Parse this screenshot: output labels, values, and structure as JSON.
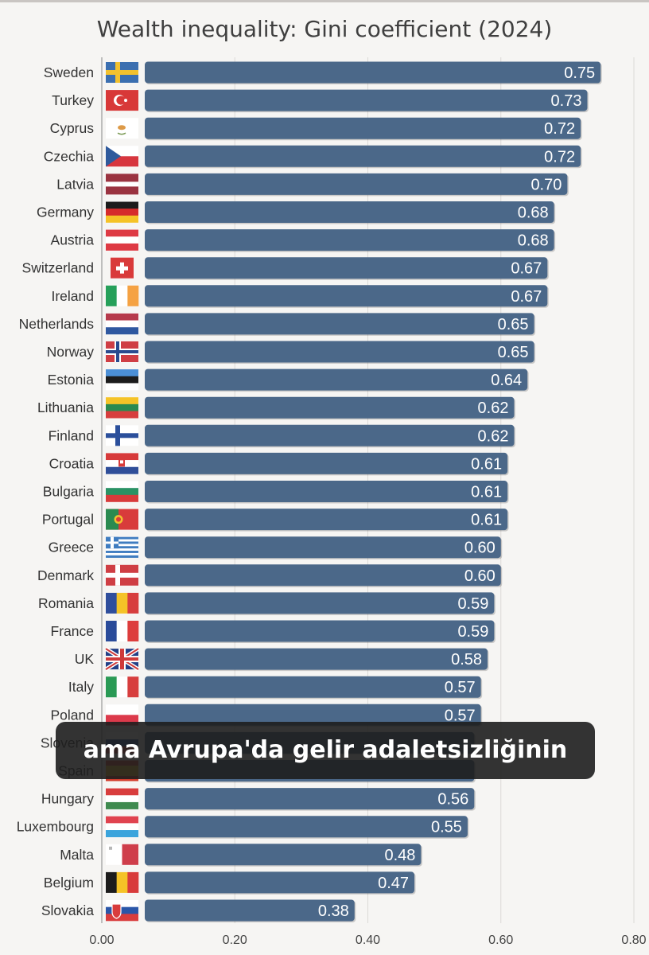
{
  "chart_data": {
    "type": "bar",
    "orientation": "horizontal",
    "title": "Wealth inequality: Gini coefficient (2024)",
    "xlabel": "",
    "ylabel": "",
    "xlim": [
      0,
      0.8
    ],
    "x_ticks": [
      "0.00",
      "0.20",
      "0.40",
      "0.60",
      "0.80"
    ],
    "grid": true,
    "bar_color": "#4b6889",
    "categories": [
      "Sweden",
      "Turkey",
      "Cyprus",
      "Czechia",
      "Latvia",
      "Germany",
      "Austria",
      "Switzerland",
      "Ireland",
      "Netherlands",
      "Norway",
      "Estonia",
      "Lithuania",
      "Finland",
      "Croatia",
      "Bulgaria",
      "Portugal",
      "Greece",
      "Denmark",
      "Romania",
      "France",
      "UK",
      "Italy",
      "Poland",
      "Slovenia",
      "Spain",
      "Hungary",
      "Luxembourg",
      "Malta",
      "Belgium",
      "Slovakia"
    ],
    "values": [
      0.75,
      0.73,
      0.72,
      0.72,
      0.7,
      0.68,
      0.68,
      0.67,
      0.67,
      0.65,
      0.65,
      0.64,
      0.62,
      0.62,
      0.61,
      0.61,
      0.61,
      0.6,
      0.6,
      0.59,
      0.59,
      0.58,
      0.57,
      0.57,
      0.56,
      0.56,
      0.56,
      0.55,
      0.48,
      0.47,
      0.38
    ],
    "value_labels": [
      "0.75",
      "0.73",
      "0.72",
      "0.72",
      "0.70",
      "0.68",
      "0.68",
      "0.67",
      "0.67",
      "0.65",
      "0.65",
      "0.64",
      "0.62",
      "0.62",
      "0.61",
      "0.61",
      "0.61",
      "0.60",
      "0.60",
      "0.59",
      "0.59",
      "0.58",
      "0.57",
      "0.57",
      "",
      "",
      "0.56",
      "0.55",
      "0.48",
      "0.47",
      "0.38"
    ],
    "flags": [
      "sweden-flag",
      "turkey-flag",
      "cyprus-flag",
      "czechia-flag",
      "latvia-flag",
      "germany-flag",
      "austria-flag",
      "switzerland-flag",
      "ireland-flag",
      "netherlands-flag",
      "norway-flag",
      "estonia-flag",
      "lithuania-flag",
      "finland-flag",
      "croatia-flag",
      "bulgaria-flag",
      "portugal-flag",
      "greece-flag",
      "denmark-flag",
      "romania-flag",
      "france-flag",
      "uk-flag",
      "italy-flag",
      "poland-flag",
      "slovenia-flag",
      "spain-flag",
      "hungary-flag",
      "luxembourg-flag",
      "malta-flag",
      "belgium-flag",
      "slovakia-flag"
    ]
  },
  "caption": "ama Avrupa'da gelir adaletsizliğinin"
}
